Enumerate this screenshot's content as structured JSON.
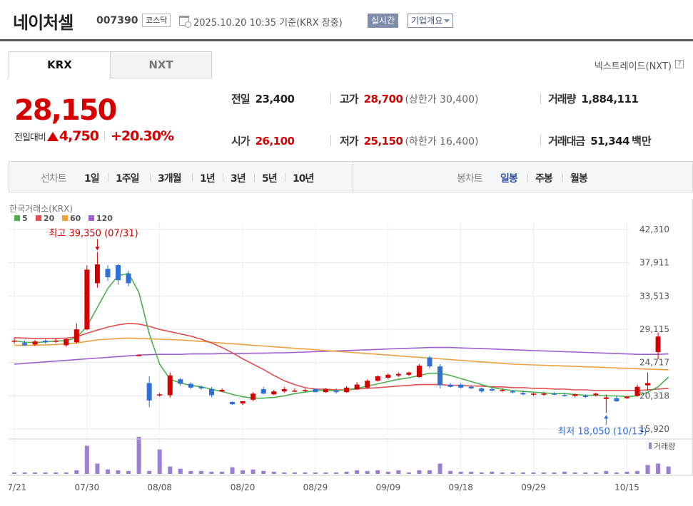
{
  "header": {
    "name": "네이처셀",
    "code": "007390",
    "market": "코스닥",
    "date": "2025.10.20 10:35",
    "basis": "기준(KRX 장중)",
    "realtime": "실시간",
    "company_info": "기업개요"
  },
  "tabs": {
    "krx": "KRX",
    "nxt": "NXT",
    "nextrade": "넥스트레이드(NXT)",
    "help": "?"
  },
  "price": {
    "current": "28,150",
    "change_label": "전일대비",
    "change": "4,750",
    "change_pct": "+20.30%"
  },
  "stats": {
    "prev_label": "전일",
    "prev": "23,400",
    "high_label": "고가",
    "high": "28,700",
    "upper_limit": "(상한가 30,400)",
    "volume_label": "거래량",
    "volume": "1,884,111",
    "open_label": "시가",
    "open": "26,100",
    "low_label": "저가",
    "low": "25,150",
    "lower_limit": "(하한가 16,400)",
    "amount_label": "거래대금",
    "amount": "51,344",
    "amount_unit": "백만"
  },
  "period": {
    "line_label": "선차트",
    "line_items": [
      "1일",
      "1주일",
      "3개월",
      "1년",
      "3년",
      "5년",
      "10년"
    ],
    "candle_label": "봉차트",
    "candle_items": [
      "일봉",
      "주봉",
      "월봉"
    ],
    "selected": "일봉"
  },
  "colors": {
    "up": "#d60000",
    "down": "#2f6fd6",
    "ma5": "#4caf50",
    "ma20": "#e05050",
    "ma60": "#f0a040",
    "ma120": "#a060d0",
    "volume": "#9b7fd4"
  },
  "chart_data": {
    "type": "candlestick",
    "source_label": "한국거래소(KRX)",
    "legend": [
      {
        "name": "5",
        "color": "#4caf50"
      },
      {
        "name": "20",
        "color": "#e05050"
      },
      {
        "name": "60",
        "color": "#f0a040"
      },
      {
        "name": "120",
        "color": "#a060d0"
      }
    ],
    "y_ticks": [
      "42,310",
      "37,911",
      "33,513",
      "29,115",
      "24,717",
      "20,318",
      "15,920"
    ],
    "y_tick_values": [
      42310,
      37911,
      33513,
      29115,
      24717,
      20318,
      15920
    ],
    "x_ticks": [
      "07/21",
      "07/30",
      "08/08",
      "08/20",
      "08/29",
      "09/09",
      "09/18",
      "09/29",
      "10/15"
    ],
    "x_tick_index": [
      0,
      7,
      14,
      22,
      29,
      36,
      43,
      50,
      59
    ],
    "volume_label": "거래량",
    "max_annotation": "최고 39,350 (07/31)",
    "max_index": 8,
    "max_value": 39350,
    "min_annotation": "최저 18,050 (10/13)",
    "min_index": 57,
    "min_value": 18050,
    "candles": [
      {
        "o": 27600,
        "h": 28000,
        "l": 27200,
        "c": 27600
      },
      {
        "o": 27300,
        "h": 27600,
        "l": 26900,
        "c": 27000
      },
      {
        "o": 27100,
        "h": 27700,
        "l": 26900,
        "c": 27500
      },
      {
        "o": 27600,
        "h": 27800,
        "l": 27200,
        "c": 27400
      },
      {
        "o": 27500,
        "h": 27900,
        "l": 27300,
        "c": 27600
      },
      {
        "o": 27000,
        "h": 27900,
        "l": 26800,
        "c": 27800
      },
      {
        "o": 27400,
        "h": 29900,
        "l": 27200,
        "c": 29100
      },
      {
        "o": 29100,
        "h": 37600,
        "l": 29000,
        "c": 37000
      },
      {
        "o": 35200,
        "h": 39350,
        "l": 34600,
        "c": 37700
      },
      {
        "o": 37100,
        "h": 37600,
        "l": 35500,
        "c": 36000
      },
      {
        "o": 37600,
        "h": 37800,
        "l": 35000,
        "c": 35600
      },
      {
        "o": 36500,
        "h": 36900,
        "l": 34800,
        "c": 35200
      },
      {
        "o": 25700,
        "h": 25800,
        "l": 25600,
        "c": 25700
      },
      {
        "o": 22000,
        "h": 22900,
        "l": 18800,
        "c": 19700
      },
      {
        "o": 20500,
        "h": 20700,
        "l": 20200,
        "c": 20500
      },
      {
        "o": 20400,
        "h": 23400,
        "l": 20100,
        "c": 23000
      },
      {
        "o": 22500,
        "h": 22700,
        "l": 21600,
        "c": 21900
      },
      {
        "o": 21900,
        "h": 22100,
        "l": 21200,
        "c": 21400
      },
      {
        "o": 21500,
        "h": 21700,
        "l": 21100,
        "c": 21300
      },
      {
        "o": 21200,
        "h": 21500,
        "l": 20100,
        "c": 20400
      },
      {
        "o": 20900,
        "h": 21300,
        "l": 20800,
        "c": 21100
      },
      {
        "o": 19500,
        "h": 19600,
        "l": 19100,
        "c": 19200
      },
      {
        "o": 19300,
        "h": 19600,
        "l": 19100,
        "c": 19600
      },
      {
        "o": 19800,
        "h": 20800,
        "l": 19600,
        "c": 20600
      },
      {
        "o": 21200,
        "h": 21500,
        "l": 20500,
        "c": 20600
      },
      {
        "o": 20500,
        "h": 21100,
        "l": 20400,
        "c": 20900
      },
      {
        "o": 20900,
        "h": 21500,
        "l": 20700,
        "c": 21200
      },
      {
        "o": 21000,
        "h": 21300,
        "l": 20800,
        "c": 21000
      },
      {
        "o": 21000,
        "h": 21300,
        "l": 20800,
        "c": 21100
      },
      {
        "o": 21200,
        "h": 21300,
        "l": 20800,
        "c": 20800
      },
      {
        "o": 20800,
        "h": 21300,
        "l": 20700,
        "c": 21200
      },
      {
        "o": 21000,
        "h": 21300,
        "l": 20600,
        "c": 20800
      },
      {
        "o": 20800,
        "h": 21600,
        "l": 20700,
        "c": 21400
      },
      {
        "o": 21200,
        "h": 22100,
        "l": 21100,
        "c": 21800
      },
      {
        "o": 21400,
        "h": 22500,
        "l": 21300,
        "c": 22300
      },
      {
        "o": 22300,
        "h": 23000,
        "l": 22200,
        "c": 22900
      },
      {
        "o": 22700,
        "h": 23300,
        "l": 22500,
        "c": 23100
      },
      {
        "o": 23000,
        "h": 23400,
        "l": 22800,
        "c": 23200
      },
      {
        "o": 23100,
        "h": 23500,
        "l": 22900,
        "c": 23400
      },
      {
        "o": 22800,
        "h": 24500,
        "l": 22700,
        "c": 24300
      },
      {
        "o": 25400,
        "h": 25600,
        "l": 23900,
        "c": 24200
      },
      {
        "o": 24200,
        "h": 24500,
        "l": 21300,
        "c": 21700
      },
      {
        "o": 21800,
        "h": 22000,
        "l": 21400,
        "c": 21500
      },
      {
        "o": 21800,
        "h": 22000,
        "l": 21300,
        "c": 21400
      },
      {
        "o": 21500,
        "h": 21700,
        "l": 21200,
        "c": 21300
      },
      {
        "o": 21300,
        "h": 21400,
        "l": 20700,
        "c": 20900
      },
      {
        "o": 21200,
        "h": 21400,
        "l": 20900,
        "c": 21000
      },
      {
        "o": 21000,
        "h": 21300,
        "l": 20800,
        "c": 21100
      },
      {
        "o": 20900,
        "h": 21100,
        "l": 20600,
        "c": 20800
      },
      {
        "o": 20700,
        "h": 21000,
        "l": 20400,
        "c": 20500
      },
      {
        "o": 20500,
        "h": 20700,
        "l": 20300,
        "c": 20600
      },
      {
        "o": 20500,
        "h": 20800,
        "l": 20300,
        "c": 20600
      },
      {
        "o": 20600,
        "h": 20800,
        "l": 20400,
        "c": 20500
      },
      {
        "o": 20400,
        "h": 20700,
        "l": 20200,
        "c": 20300
      },
      {
        "o": 20300,
        "h": 20600,
        "l": 20100,
        "c": 20500
      },
      {
        "o": 20300,
        "h": 20500,
        "l": 20000,
        "c": 20200
      },
      {
        "o": 20400,
        "h": 20700,
        "l": 20200,
        "c": 20600
      },
      {
        "o": 19900,
        "h": 20500,
        "l": 18050,
        "c": 20100
      },
      {
        "o": 20000,
        "h": 20300,
        "l": 19500,
        "c": 19600
      },
      {
        "o": 20000,
        "h": 20300,
        "l": 19900,
        "c": 20200
      },
      {
        "o": 20300,
        "h": 21800,
        "l": 20200,
        "c": 21500
      },
      {
        "o": 21700,
        "h": 23400,
        "l": 21000,
        "c": 22000
      },
      {
        "o": 26100,
        "h": 28700,
        "l": 25150,
        "c": 28150
      }
    ],
    "volume": [
      2,
      2,
      2,
      2,
      2,
      2,
      5,
      38,
      14,
      6,
      5,
      4,
      50,
      4,
      33,
      10,
      7,
      4,
      4,
      3,
      3,
      9,
      5,
      6,
      4,
      3,
      2,
      2,
      2,
      2,
      2,
      2,
      3,
      5,
      4,
      5,
      3,
      5,
      2,
      5,
      5,
      14,
      4,
      3,
      3,
      2,
      3,
      2,
      2,
      2,
      2,
      2,
      2,
      3,
      2,
      2,
      2,
      4,
      2,
      3,
      4,
      12,
      14,
      10
    ],
    "ma5": [
      27600,
      27400,
      27350,
      27450,
      27550,
      27600,
      28000,
      29500,
      32000,
      34500,
      36200,
      36500,
      34000,
      28500,
      24500,
      22500,
      22000,
      21700,
      21500,
      21200,
      20900,
      20500,
      20200,
      20000,
      20000,
      20100,
      20300,
      20600,
      20800,
      21000,
      21000,
      21000,
      21100,
      21300,
      21600,
      21900,
      22200,
      22500,
      22700,
      23000,
      23300,
      23300,
      23000,
      22600,
      22200,
      21800,
      21400,
      21200,
      21000,
      20900,
      20800,
      20700,
      20600,
      20600,
      20500,
      20400,
      20400,
      20300,
      20300,
      20200,
      20300,
      20800,
      21500,
      22800
    ],
    "ma20": [
      28000,
      27950,
      27900,
      27900,
      27900,
      27950,
      28100,
      28600,
      29000,
      29400,
      29700,
      29900,
      29800,
      29500,
      29100,
      28800,
      28500,
      28200,
      27800,
      27300,
      26700,
      26000,
      25200,
      24500,
      23800,
      23000,
      22300,
      21800,
      21400,
      21200,
      21200,
      21100,
      21100,
      21200,
      21300,
      21400,
      21500,
      21600,
      21700,
      21800,
      21800,
      21800,
      21700,
      21700,
      21600,
      21600,
      21500,
      21500,
      21400,
      21400,
      21300,
      21300,
      21200,
      21200,
      21100,
      21100,
      21000,
      21000,
      21000,
      21000,
      21000,
      21100,
      21200,
      21300
    ],
    "ma60": [
      27000,
      27000,
      27000,
      27050,
      27100,
      27200,
      27300,
      27500,
      27700,
      27800,
      27900,
      27950,
      27900,
      27850,
      27800,
      27750,
      27700,
      27600,
      27500,
      27400,
      27300,
      27200,
      27100,
      27000,
      26900,
      26800,
      26700,
      26600,
      26500,
      26400,
      26300,
      26200,
      26100,
      26000,
      25900,
      25800,
      25700,
      25600,
      25500,
      25400,
      25300,
      25200,
      25100,
      25000,
      24900,
      24800,
      24700,
      24600,
      24500,
      24450,
      24400,
      24350,
      24300,
      24250,
      24200,
      24150,
      24100,
      24050,
      24000,
      23950,
      23900,
      23850,
      23800,
      23750
    ],
    "ma120": [
      24500,
      24600,
      24700,
      24800,
      24900,
      25000,
      25100,
      25200,
      25300,
      25400,
      25500,
      25600,
      25700,
      25750,
      25800,
      25800,
      25800,
      25850,
      25850,
      25850,
      25900,
      25900,
      25900,
      25950,
      25950,
      26000,
      26000,
      26050,
      26100,
      26150,
      26200,
      26250,
      26300,
      26350,
      26400,
      26450,
      26500,
      26550,
      26600,
      26650,
      26700,
      26700,
      26700,
      26650,
      26600,
      26550,
      26500,
      26450,
      26400,
      26350,
      26300,
      26250,
      26200,
      26150,
      26100,
      26050,
      26000,
      25950,
      25900,
      25850,
      25800,
      25800,
      25800,
      25850
    ]
  }
}
